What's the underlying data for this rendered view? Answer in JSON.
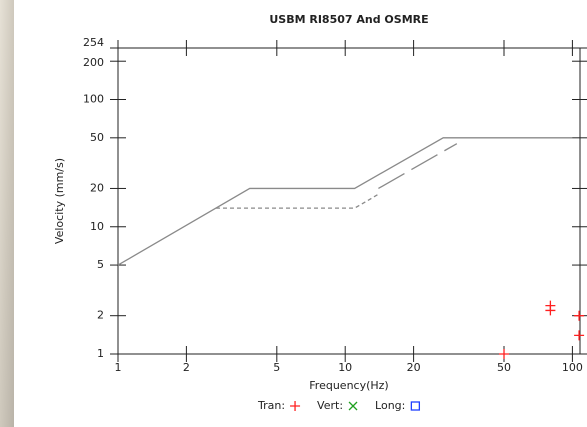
{
  "chart_data": {
    "type": "line",
    "title": "USBM RI8507 And OSMRE",
    "x_label": "Frequency(Hz)",
    "y_label": "Velocity (mm/s)",
    "log_x": true,
    "log_y": true,
    "xlim": [
      1,
      108
    ],
    "ylim": [
      1,
      254
    ],
    "xticks": [
      1,
      2,
      5,
      10,
      20,
      50,
      100
    ],
    "yticks": [
      1,
      2,
      5,
      10,
      20,
      50,
      100,
      200,
      254
    ],
    "series": [
      {
        "color": "#8a8a8a",
        "x": [
          1,
          3.8,
          11,
          27,
          100
        ],
        "values": [
          5,
          20,
          20,
          50,
          50
        ]
      },
      {
        "color": "#8a8a8a",
        "dash": "4,3",
        "x": [
          2.7,
          11,
          14
        ],
        "values": [
          14,
          14,
          18
        ]
      },
      {
        "color": "#8a8a8a",
        "dash": "30,8",
        "x": [
          14,
          31
        ],
        "values": [
          20,
          45
        ]
      },
      {
        "name": "Tran:",
        "color": "#ff2020",
        "marker": "plus",
        "x": [
          50,
          80,
          80,
          107,
          107
        ],
        "values": [
          1,
          2.4,
          2.2,
          2,
          1.4
        ]
      },
      {
        "name": "Vert:",
        "color": "#20a020",
        "marker": "cross",
        "x": [],
        "values": []
      },
      {
        "name": "Long:",
        "color": "#2040ff",
        "marker": "square",
        "x": [],
        "values": []
      }
    ]
  }
}
